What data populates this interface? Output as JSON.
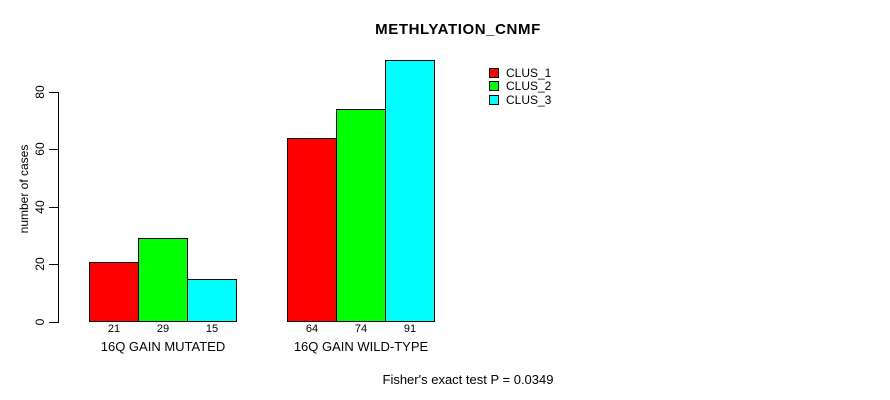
{
  "chart_data": {
    "type": "bar",
    "title": "METHLYATION_CNMF",
    "ylabel": "number of cases",
    "xlabel": "",
    "categories": [
      "16Q GAIN MUTATED",
      "16Q GAIN WILD-TYPE"
    ],
    "series": [
      {
        "name": "CLUS_1",
        "color": "#ff0000",
        "values": [
          21,
          64
        ]
      },
      {
        "name": "CLUS_2",
        "color": "#00ff00",
        "values": [
          29,
          74
        ]
      },
      {
        "name": "CLUS_3",
        "color": "#00ffff",
        "values": [
          15,
          91
        ]
      }
    ],
    "bar_value_labels": [
      [
        21,
        29,
        15
      ],
      [
        64,
        74,
        91
      ]
    ],
    "yticks": [
      0,
      20,
      40,
      60,
      80
    ],
    "ylim": [
      0,
      91
    ],
    "grid": false,
    "legend_position": "top-right",
    "legend_entries": [
      "CLUS_1",
      "CLUS_2",
      "CLUS_3"
    ],
    "annotation": "Fisher's exact test P = 0.0349",
    "bar_border_color": "#000000",
    "axis_color": "#000000",
    "background_color": "#ffffff"
  }
}
